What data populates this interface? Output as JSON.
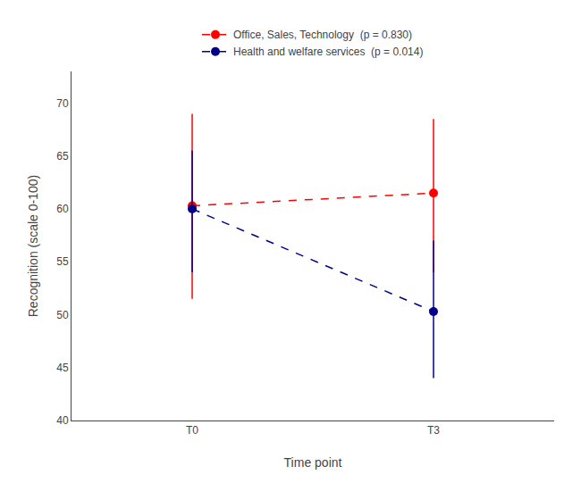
{
  "chart_data": {
    "type": "line",
    "xlabel": "Time point",
    "ylabel": "Recognition (scale 0-100)",
    "x": [
      0,
      1
    ],
    "xlim": [
      -0.5,
      1.5
    ],
    "xticks": [
      {
        "value": 0,
        "label": "T0"
      },
      {
        "value": 1,
        "label": "T3"
      }
    ],
    "ylim": [
      40,
      73
    ],
    "yticks": [
      40,
      45,
      50,
      55,
      60,
      65,
      70
    ],
    "grid": false,
    "legend": "top",
    "line_style": "dashed",
    "marker": "circle",
    "series": [
      {
        "name": "Office, Sales, Technology  (p = 0.830)",
        "color": "#FF0000",
        "values": [
          60.3,
          61.5
        ],
        "y_lower": [
          51.5,
          54.0
        ],
        "y_upper": [
          69.0,
          68.5
        ]
      },
      {
        "name": "Health and welfare services  (p = 0.014)",
        "color": "#00008B",
        "values": [
          60.0,
          50.3
        ],
        "y_lower": [
          54.0,
          44.0
        ],
        "y_upper": [
          65.5,
          57.0
        ]
      }
    ]
  }
}
